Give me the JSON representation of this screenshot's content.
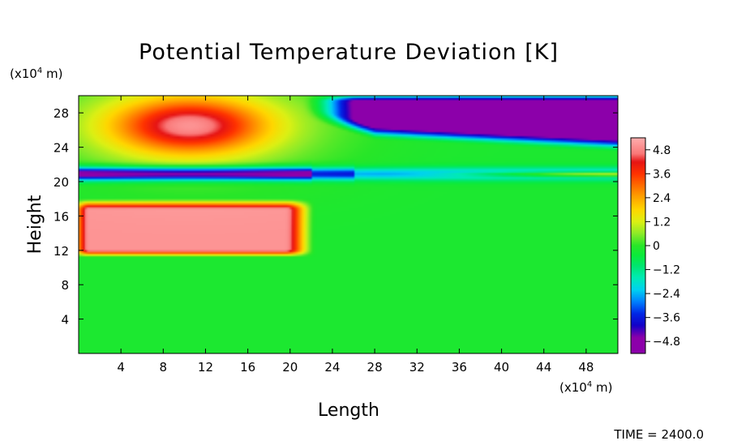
{
  "chart_data": {
    "type": "heatmap",
    "title": "Potential Temperature Deviation [K]",
    "xlabel": "Length",
    "ylabel": "Height",
    "x_unit_label": "(x10",
    "x_unit_exp": "4",
    "x_unit_suffix": " m)",
    "y_unit_label": "(x10",
    "y_unit_exp": "4",
    "y_unit_suffix": " m)",
    "xlim": [
      0,
      51
    ],
    "ylim": [
      0,
      30
    ],
    "x_ticks": [
      4,
      8,
      12,
      16,
      20,
      24,
      28,
      32,
      36,
      40,
      44,
      48
    ],
    "y_ticks": [
      4,
      8,
      12,
      16,
      20,
      24,
      28
    ],
    "colorbar": {
      "range": [
        -5.4,
        5.4
      ],
      "labels": [
        {
          "value": 4.8,
          "text": "4.8"
        },
        {
          "value": 3.6,
          "text": "3.6"
        },
        {
          "value": 2.4,
          "text": "2.4"
        },
        {
          "value": 1.2,
          "text": "1.2"
        },
        {
          "value": 0,
          "text": "0"
        },
        {
          "value": -1.2,
          "text": "−1.2"
        },
        {
          "value": -2.4,
          "text": "−2.4"
        },
        {
          "value": -3.6,
          "text": "−3.6"
        },
        {
          "value": -4.8,
          "text": "−4.8"
        }
      ]
    },
    "field_features": [
      {
        "kind": "warm-blob",
        "x_center": 10.5,
        "y_center": 26.5,
        "x_halfwidth": 8,
        "y_halfwidth": 3.6,
        "peak": 4.0
      },
      {
        "kind": "warm-layer",
        "x_range": [
          0,
          21
        ],
        "y_range": [
          11.5,
          17.5
        ],
        "peak": 5.2
      },
      {
        "kind": "cold-layer",
        "x_range": [
          0,
          51
        ],
        "y_range": [
          20.2,
          21.6
        ],
        "peak": -5.2
      },
      {
        "kind": "cold-region",
        "x_range": [
          25,
          51
        ],
        "y_range": [
          24.5,
          29.8
        ],
        "peak": -5.2
      },
      {
        "kind": "warm-filament",
        "x_range": [
          28,
          51
        ],
        "y_range": [
          20.6,
          21.1
        ],
        "peak": 3.5
      }
    ],
    "time_label": "TIME = 2400.0"
  }
}
